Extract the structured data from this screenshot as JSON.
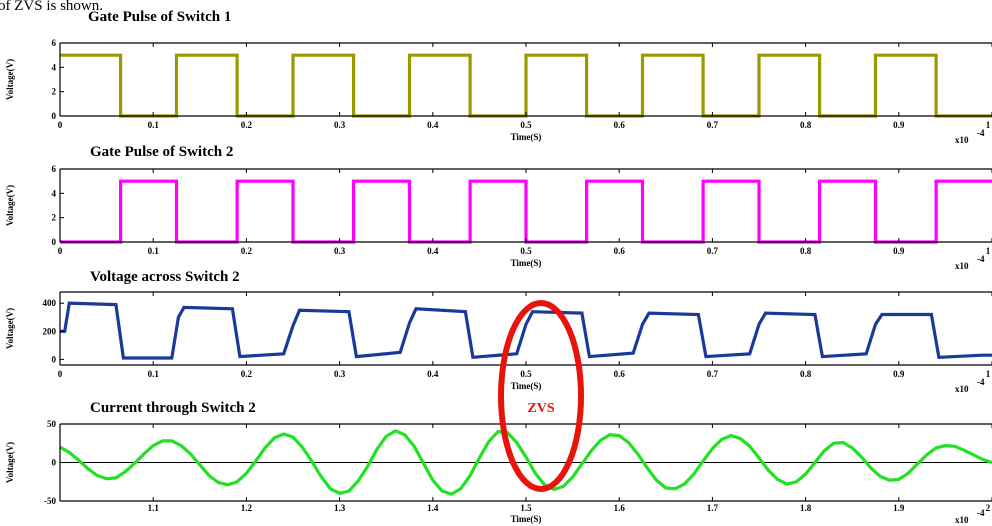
{
  "caption_fragment": "of ZVS is shown.",
  "annotation": {
    "text": "ZVS",
    "color": "#e8140c"
  },
  "colors": {
    "axes": "#000000"
  },
  "chart_data": [
    {
      "type": "line",
      "title": "Gate Pulse of Switch 1",
      "xlabel": "Time(S)",
      "ylabel": "Voltage(V)",
      "exponent_label": "x10",
      "exponent_sup": "-4",
      "xlim": [
        0,
        1
      ],
      "ylim": [
        0,
        6
      ],
      "xticks": [
        0,
        0.1,
        0.2,
        0.3,
        0.4,
        0.5,
        0.6,
        0.7,
        0.8,
        0.9,
        1
      ],
      "xtick_labels": [
        "0",
        "0.1",
        "0.2",
        "0.3",
        "0.4",
        "0.5",
        "0.6",
        "0.7",
        "0.8",
        "0.9",
        "1"
      ],
      "yticks": [
        0,
        2,
        4,
        6
      ],
      "ytick_labels": [
        "0",
        "2",
        "4",
        "6"
      ],
      "color": "#9a9a00",
      "grid": false,
      "series": [
        {
          "x": [
            0,
            0.065,
            0.065,
            0.125,
            0.125,
            0.19,
            0.19,
            0.25,
            0.25,
            0.315,
            0.315,
            0.375,
            0.375,
            0.44,
            0.44,
            0.5,
            0.5,
            0.565,
            0.565,
            0.625,
            0.625,
            0.69,
            0.69,
            0.75,
            0.75,
            0.815,
            0.815,
            0.875,
            0.875,
            0.94,
            0.94,
            1.0
          ],
          "y": [
            5,
            5,
            0,
            0,
            5,
            5,
            0,
            0,
            5,
            5,
            0,
            0,
            5,
            5,
            0,
            0,
            5,
            5,
            0,
            0,
            5,
            5,
            0,
            0,
            5,
            5,
            0,
            0,
            5,
            5,
            0,
            0
          ]
        }
      ]
    },
    {
      "type": "line",
      "title": "Gate Pulse of Switch 2",
      "xlabel": "Time(S)",
      "ylabel": "Voltage(V)",
      "exponent_label": "x10",
      "exponent_sup": "-4",
      "xlim": [
        0,
        1
      ],
      "ylim": [
        0,
        6
      ],
      "xticks": [
        0,
        0.1,
        0.2,
        0.3,
        0.4,
        0.5,
        0.6,
        0.7,
        0.8,
        0.9,
        1
      ],
      "xtick_labels": [
        "0",
        "0.1",
        "0.2",
        "0.3",
        "0.4",
        "0.5",
        "0.6",
        "0.7",
        "0.8",
        "0.9",
        "1"
      ],
      "yticks": [
        0,
        2,
        4,
        6
      ],
      "ytick_labels": [
        "0",
        "2",
        "4",
        "6"
      ],
      "color": "#ff00ff",
      "grid": false,
      "series": [
        {
          "x": [
            0,
            0.065,
            0.065,
            0.125,
            0.125,
            0.19,
            0.19,
            0.25,
            0.25,
            0.315,
            0.315,
            0.375,
            0.375,
            0.44,
            0.44,
            0.5,
            0.5,
            0.565,
            0.565,
            0.625,
            0.625,
            0.69,
            0.69,
            0.75,
            0.75,
            0.815,
            0.815,
            0.875,
            0.875,
            0.94,
            0.94,
            1.0
          ],
          "y": [
            0,
            0,
            5,
            5,
            0,
            0,
            5,
            5,
            0,
            0,
            5,
            5,
            0,
            0,
            5,
            5,
            0,
            0,
            5,
            5,
            0,
            0,
            5,
            5,
            0,
            0,
            5,
            5,
            0,
            0,
            5,
            5
          ]
        }
      ]
    },
    {
      "type": "line",
      "title": "Voltage across Switch 2",
      "xlabel": "Time(S)",
      "ylabel": "Voltage(V)",
      "exponent_label": "x10",
      "exponent_sup": "-4",
      "xlim": [
        0,
        1
      ],
      "ylim": [
        -40,
        480
      ],
      "xticks": [
        0,
        0.1,
        0.2,
        0.3,
        0.4,
        0.5,
        0.6,
        0.7,
        0.8,
        0.9,
        1
      ],
      "xtick_labels": [
        "0",
        "0.1",
        "0.2",
        "0.3",
        "0.4",
        "0.5",
        "0.6",
        "0.7",
        "0.8",
        "0.9",
        "1"
      ],
      "yticks": [
        0,
        200,
        400
      ],
      "ytick_labels": [
        "0",
        "200",
        "400"
      ],
      "color": "#1a3a9a",
      "grid": false,
      "series": [
        {
          "x": [
            0,
            0.005,
            0.01,
            0.06,
            0.068,
            0.12,
            0.127,
            0.133,
            0.185,
            0.193,
            0.24,
            0.25,
            0.257,
            0.31,
            0.318,
            0.365,
            0.375,
            0.382,
            0.435,
            0.443,
            0.49,
            0.5,
            0.507,
            0.56,
            0.568,
            0.615,
            0.625,
            0.632,
            0.685,
            0.693,
            0.74,
            0.75,
            0.757,
            0.81,
            0.818,
            0.865,
            0.875,
            0.882,
            0.935,
            0.943,
            0.99,
            1.0
          ],
          "y": [
            200,
            200,
            400,
            390,
            10,
            10,
            300,
            370,
            360,
            20,
            40,
            240,
            350,
            340,
            20,
            50,
            260,
            360,
            340,
            15,
            40,
            250,
            340,
            330,
            20,
            45,
            250,
            330,
            320,
            20,
            40,
            250,
            330,
            320,
            20,
            40,
            250,
            320,
            320,
            15,
            30,
            30
          ]
        }
      ]
    },
    {
      "type": "line",
      "title": "Current through Switch 2",
      "xlabel": "Time(S)",
      "ylabel": "Voltage(V)",
      "exponent_label": "x10",
      "exponent_sup": "-4",
      "xlim": [
        1.0,
        2.0
      ],
      "ylim": [
        -50,
        50
      ],
      "xticks": [
        1.1,
        1.2,
        1.3,
        1.4,
        1.5,
        1.6,
        1.7,
        1.8,
        1.9,
        2
      ],
      "xtick_labels": [
        "1.1",
        "1.2",
        "1.3",
        "1.4",
        "1.5",
        "1.6",
        "1.7",
        "1.8",
        "1.9",
        "2"
      ],
      "yticks": [
        -50,
        0,
        50
      ],
      "ytick_labels": [
        "-50",
        "0",
        "50"
      ],
      "color": "#22e022",
      "zero_line": true,
      "grid": false,
      "series": [
        {
          "x": [
            1.0,
            1.01,
            1.02,
            1.03,
            1.04,
            1.05,
            1.06,
            1.07,
            1.08,
            1.09,
            1.1,
            1.11,
            1.12,
            1.13,
            1.14,
            1.15,
            1.16,
            1.17,
            1.18,
            1.19,
            1.2,
            1.21,
            1.22,
            1.23,
            1.24,
            1.25,
            1.26,
            1.27,
            1.28,
            1.29,
            1.3,
            1.31,
            1.32,
            1.33,
            1.34,
            1.35,
            1.36,
            1.37,
            1.38,
            1.39,
            1.4,
            1.41,
            1.42,
            1.43,
            1.44,
            1.45,
            1.46,
            1.47,
            1.48,
            1.49,
            1.5,
            1.51,
            1.52,
            1.53,
            1.54,
            1.55,
            1.56,
            1.57,
            1.58,
            1.59,
            1.6,
            1.61,
            1.62,
            1.63,
            1.64,
            1.65,
            1.66,
            1.67,
            1.68,
            1.69,
            1.7,
            1.71,
            1.72,
            1.73,
            1.74,
            1.75,
            1.76,
            1.77,
            1.78,
            1.79,
            1.8,
            1.81,
            1.82,
            1.83,
            1.84,
            1.85,
            1.86,
            1.87,
            1.88,
            1.89,
            1.9,
            1.91,
            1.92,
            1.93,
            1.94,
            1.95,
            1.96,
            1.97,
            1.98,
            1.99,
            2.0
          ],
          "y": [
            20,
            13,
            3,
            -8,
            -17,
            -21,
            -20,
            -12,
            -1,
            11,
            22,
            28,
            28,
            22,
            11,
            -3,
            -17,
            -26,
            -29,
            -25,
            -14,
            2,
            19,
            32,
            37,
            33,
            20,
            2,
            -18,
            -34,
            -40,
            -37,
            -24,
            -5,
            17,
            34,
            41,
            36,
            21,
            -1,
            -23,
            -37,
            -41,
            -34,
            -17,
            6,
            27,
            40,
            39,
            26,
            7,
            -14,
            -29,
            -35,
            -31,
            -19,
            -2,
            15,
            29,
            36,
            35,
            26,
            11,
            -7,
            -23,
            -33,
            -34,
            -28,
            -15,
            2,
            18,
            30,
            35,
            31,
            21,
            6,
            -10,
            -22,
            -28,
            -25,
            -15,
            0,
            15,
            25,
            26,
            19,
            7,
            -7,
            -18,
            -23,
            -22,
            -14,
            -2,
            10,
            19,
            22,
            21,
            16,
            10,
            4,
            0
          ]
        }
      ]
    }
  ]
}
